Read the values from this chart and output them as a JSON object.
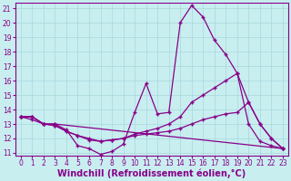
{
  "xlabel": "Windchill (Refroidissement éolien,°C)",
  "background_color": "#c8eef0",
  "line_color": "#880088",
  "xlim": [
    -0.5,
    23.5
  ],
  "ylim": [
    10.8,
    21.4
  ],
  "yticks": [
    11,
    12,
    13,
    14,
    15,
    16,
    17,
    18,
    19,
    20,
    21
  ],
  "xticks": [
    0,
    1,
    2,
    3,
    4,
    5,
    6,
    7,
    8,
    9,
    10,
    11,
    12,
    13,
    14,
    15,
    16,
    17,
    18,
    19,
    20,
    21,
    22,
    23
  ],
  "line1_x": [
    0,
    1,
    2,
    3,
    4,
    5,
    6,
    7,
    8,
    9,
    10,
    11,
    12,
    13,
    14,
    15,
    16,
    17,
    18,
    19,
    20,
    21,
    22,
    23
  ],
  "line1_y": [
    13.5,
    13.5,
    13.0,
    13.0,
    12.6,
    11.5,
    11.3,
    10.9,
    11.1,
    11.6,
    13.8,
    15.8,
    13.7,
    13.8,
    20.0,
    21.2,
    20.4,
    18.8,
    17.8,
    16.5,
    13.0,
    11.8,
    11.5,
    11.3
  ],
  "line2_x": [
    0,
    1,
    2,
    3,
    4,
    5,
    6,
    7,
    8,
    9,
    10,
    11,
    12,
    13,
    14,
    15,
    16,
    17,
    18,
    19,
    20,
    21,
    22,
    23
  ],
  "line2_y": [
    13.5,
    13.5,
    13.0,
    12.9,
    12.5,
    12.2,
    12.0,
    11.8,
    11.9,
    12.0,
    12.3,
    12.5,
    12.7,
    13.0,
    13.5,
    14.5,
    15.0,
    15.5,
    16.0,
    16.5,
    14.5,
    13.0,
    12.0,
    11.3
  ],
  "line3_x": [
    0,
    1,
    2,
    3,
    4,
    5,
    6,
    7,
    8,
    9,
    10,
    11,
    12,
    13,
    14,
    15,
    16,
    17,
    18,
    19,
    20,
    21,
    22,
    23
  ],
  "line3_y": [
    13.5,
    13.3,
    13.0,
    12.9,
    12.5,
    12.2,
    11.9,
    11.8,
    11.9,
    12.0,
    12.2,
    12.3,
    12.4,
    12.5,
    12.7,
    13.0,
    13.3,
    13.5,
    13.7,
    13.8,
    14.5,
    13.0,
    12.0,
    11.3
  ],
  "line4_x": [
    0,
    1,
    2,
    3,
    23
  ],
  "line4_y": [
    13.5,
    13.5,
    13.0,
    13.0,
    11.3
  ],
  "grid_color": "#a8d8dc",
  "tick_fontsize": 5.5,
  "xlabel_fontsize": 7.0
}
